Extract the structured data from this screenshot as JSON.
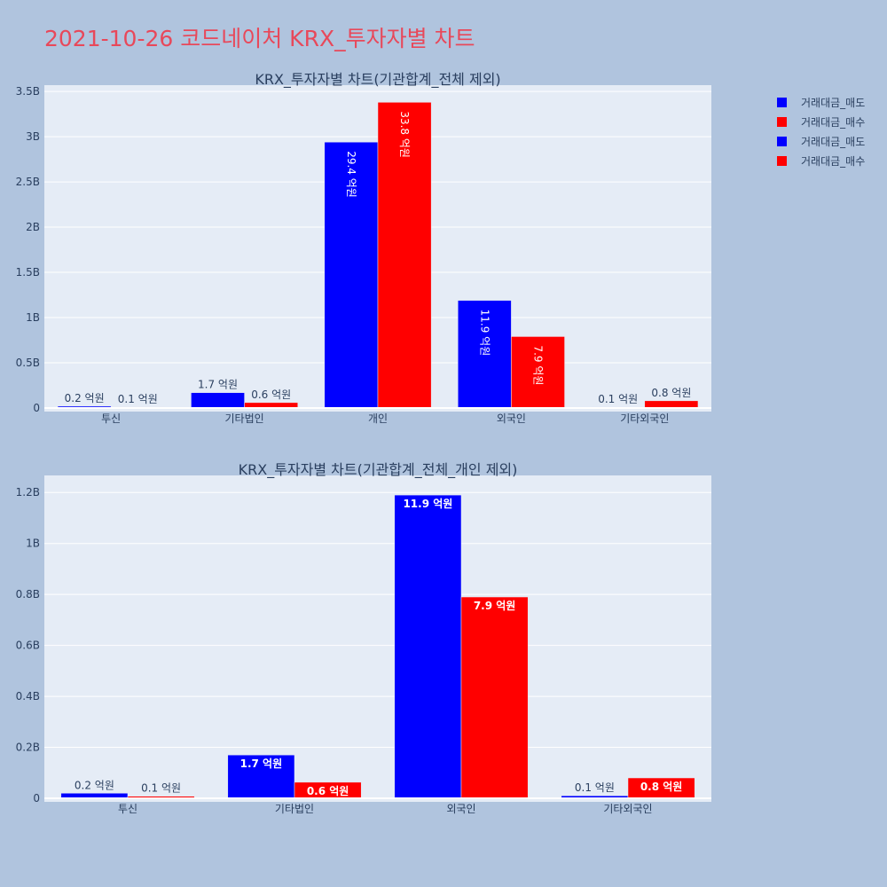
{
  "title": "2021-10-26 코드네이처 KRX_투자자별 차트",
  "legend": [
    {
      "name": "거래대금_매도",
      "color": "#0000ff"
    },
    {
      "name": "거래대금_매수",
      "color": "#ff0000"
    },
    {
      "name": "거래대금_매도",
      "color": "#0000ff"
    },
    {
      "name": "거래대금_매수",
      "color": "#ff0000"
    }
  ],
  "chart_data": [
    {
      "type": "bar",
      "title": "KRX_투자자별 차트(기관합계_전체 제외)",
      "categories": [
        "투신",
        "기타법인",
        "개인",
        "외국인",
        "기타외국인"
      ],
      "series": [
        {
          "name": "거래대금_매도",
          "color": "#0000ff",
          "values": [
            20000000,
            170000000,
            2940000000,
            1190000000,
            10000000
          ],
          "labels": [
            "0.2 억원",
            "1.7 억원",
            "29.4 억원",
            "11.9 억원",
            "0.1 억원"
          ]
        },
        {
          "name": "거래대금_매수",
          "color": "#ff0000",
          "values": [
            10000000,
            60000000,
            3380000000,
            790000000,
            80000000
          ],
          "labels": [
            "0.1 억원",
            "0.6 억원",
            "33.8 억원",
            "7.9 억원",
            "0.8 억원"
          ]
        }
      ],
      "ylim": [
        0,
        3550000000
      ],
      "yticks": [
        0,
        500000000,
        1000000000,
        1500000000,
        2000000000,
        2500000000,
        3000000000,
        3500000000
      ],
      "ytick_labels": [
        "0",
        "0.5B",
        "1B",
        "1.5B",
        "2B",
        "2.5B",
        "3B",
        "3.5B"
      ],
      "grid": true
    },
    {
      "type": "bar",
      "title": "KRX_투자자별 차트(기관합계_전체_개인 제외)",
      "categories": [
        "투신",
        "기타법인",
        "외국인",
        "기타외국인"
      ],
      "series": [
        {
          "name": "거래대금_매도",
          "color": "#0000ff",
          "values": [
            20000000,
            170000000,
            1190000000,
            10000000
          ],
          "labels": [
            "0.2 억원",
            "1.7 억원",
            "11.9 억원",
            "0.1 억원"
          ]
        },
        {
          "name": "거래대금_매수",
          "color": "#ff0000",
          "values": [
            8000000,
            63000000,
            790000000,
            80000000
          ],
          "labels": [
            "0.1 억원",
            "0.6 억원",
            "7.9 억원",
            "0.8 억원"
          ]
        }
      ],
      "ylim": [
        0,
        1260000000
      ],
      "yticks": [
        0,
        200000000,
        400000000,
        600000000,
        800000000,
        1000000000,
        1200000000
      ],
      "ytick_labels": [
        "0",
        "0.2B",
        "0.4B",
        "0.6B",
        "0.8B",
        "1B",
        "1.2B"
      ],
      "grid": true
    }
  ]
}
